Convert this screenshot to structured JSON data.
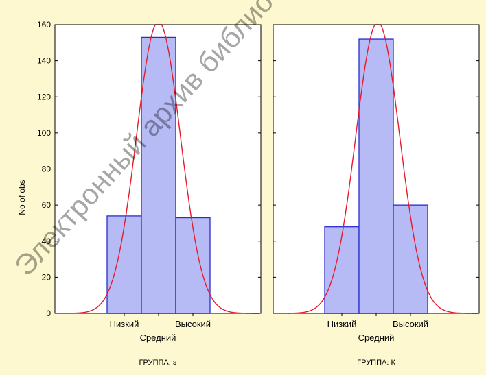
{
  "background_color": "#fdf8cf",
  "bar_fill": "#b7bbf5",
  "bar_stroke": "#2b2bd0",
  "curve_color": "#e8192c",
  "watermark": "Электронный архив библиотеки",
  "chart_data": [
    {
      "type": "bar",
      "title": "",
      "ylabel": "No of obs",
      "xlabel": "Средний",
      "caption": "ГРУППА: э",
      "ylim": [
        0,
        160
      ],
      "yticks": [
        "0",
        "20",
        "40",
        "60",
        "80",
        "100",
        "120",
        "140",
        "160"
      ],
      "categories": [
        "Низкий",
        "Средний",
        "Высокий"
      ],
      "values": [
        54,
        153,
        53
      ],
      "tick_labels": [
        "Низкий",
        "Высокий"
      ],
      "grid": false,
      "overlay": "normal-curve"
    },
    {
      "type": "bar",
      "title": "",
      "ylabel": "",
      "xlabel": "Средний",
      "caption": "ГРУППА: К",
      "ylim": [
        0,
        160
      ],
      "yticks": [
        "0",
        "20",
        "40",
        "60",
        "80",
        "100",
        "120",
        "140",
        "160"
      ],
      "categories": [
        "Низкий",
        "Средний",
        "Высокий"
      ],
      "values": [
        48,
        152,
        60
      ],
      "tick_labels": [
        "Низкий",
        "Высокий"
      ],
      "grid": false,
      "overlay": "normal-curve"
    }
  ]
}
